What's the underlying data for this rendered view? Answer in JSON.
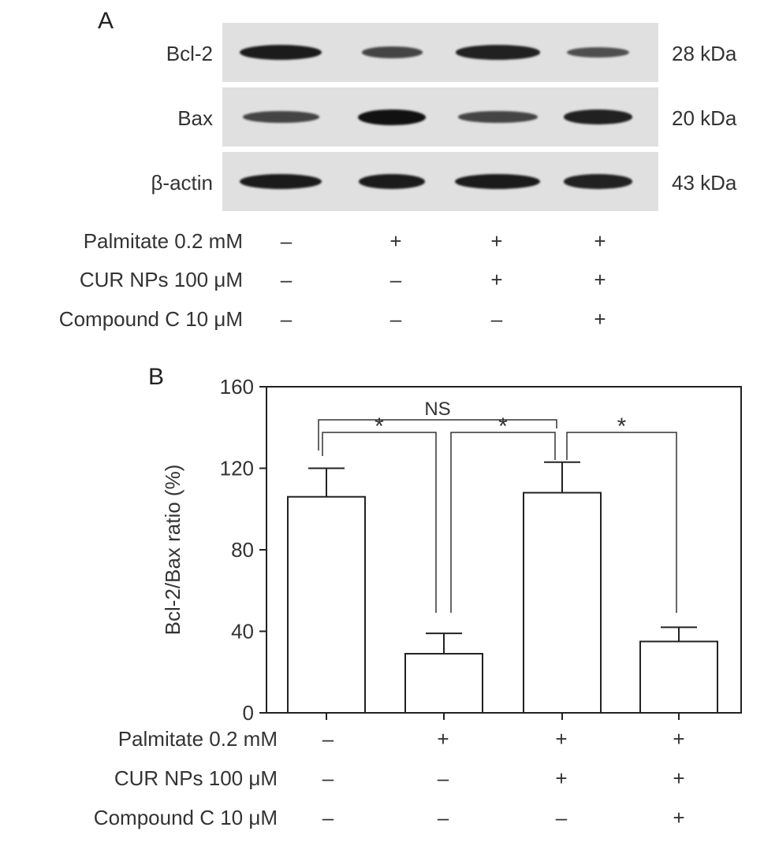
{
  "panel_a": {
    "letter": "A",
    "blots": [
      {
        "protein": "Bcl-2",
        "kda": "28 kDa",
        "intensities": [
          0.9,
          0.55,
          0.85,
          0.45
        ]
      },
      {
        "protein": "Bax",
        "kda": "20 kDa",
        "intensities": [
          0.55,
          1.0,
          0.55,
          0.85
        ]
      },
      {
        "protein": "β-actin",
        "kda": "43 kDa",
        "intensities": [
          0.9,
          0.9,
          0.9,
          0.85
        ]
      }
    ],
    "conditions": [
      {
        "label": "Palmitate 0.2 mM",
        "signs": [
          "–",
          "+",
          "+",
          "+"
        ]
      },
      {
        "label": "CUR NPs 100 μM",
        "signs": [
          "–",
          "–",
          "+",
          "+"
        ]
      },
      {
        "label": "Compound C 10 μM",
        "signs": [
          "–",
          "–",
          "–",
          "+"
        ]
      }
    ]
  },
  "panel_b": {
    "letter": "B",
    "conditions": [
      {
        "label": "Palmitate 0.2 mM",
        "signs": [
          "–",
          "+",
          "+",
          "+"
        ]
      },
      {
        "label": "CUR NPs 100 μM",
        "signs": [
          "–",
          "–",
          "+",
          "+"
        ]
      },
      {
        "label": "Compound C 10 μM",
        "signs": [
          "–",
          "–",
          "–",
          "+"
        ]
      }
    ]
  },
  "chart_data": {
    "type": "bar",
    "ylabel": "Bcl-2/Bax ratio (%)",
    "ylim": [
      0,
      160
    ],
    "yticks": [
      "0",
      "40",
      "80",
      "120",
      "160"
    ],
    "yticks_values": [
      0,
      40,
      80,
      120,
      160
    ],
    "values": [
      106,
      29,
      108,
      35
    ],
    "errors": [
      14,
      10,
      15,
      7
    ],
    "significance": [
      {
        "from": 0,
        "to": 2,
        "label": "NS"
      },
      {
        "from": 0,
        "to": 1,
        "label": "*"
      },
      {
        "from": 1,
        "to": 2,
        "label": "*"
      },
      {
        "from": 2,
        "to": 3,
        "label": "*"
      }
    ],
    "grid": false
  }
}
